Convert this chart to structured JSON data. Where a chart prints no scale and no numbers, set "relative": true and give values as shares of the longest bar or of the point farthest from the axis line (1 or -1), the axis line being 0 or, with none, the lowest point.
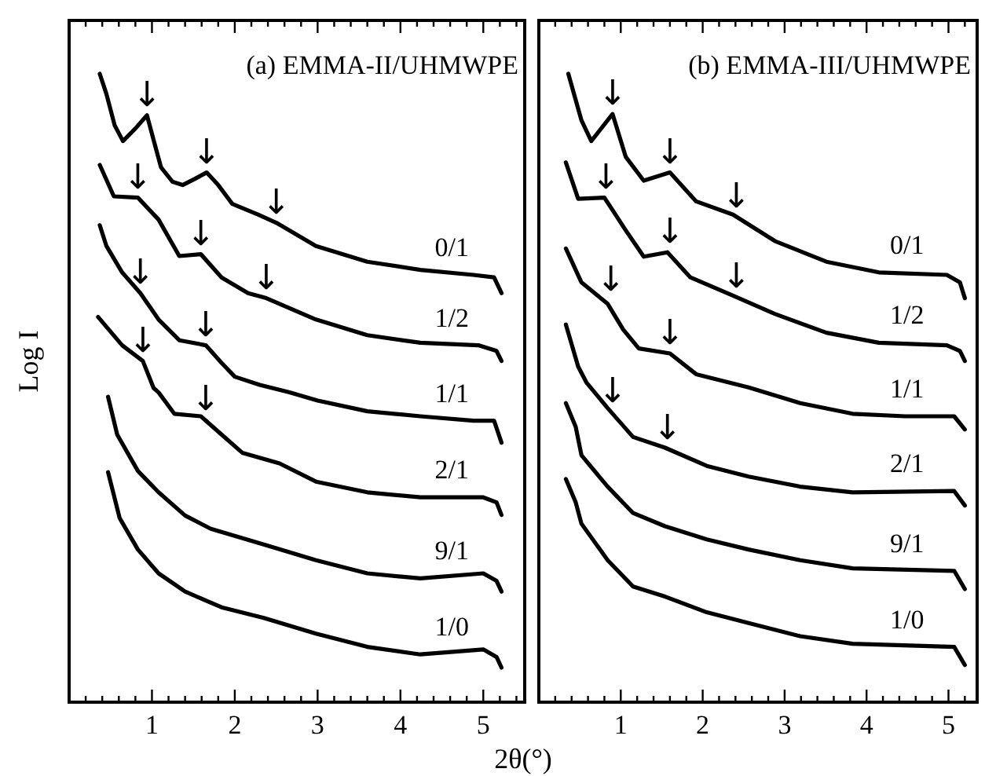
{
  "chart_data": [
    {
      "type": "line",
      "title": "(a) EMMA-II/UHMWPE",
      "ylabel": "Log I",
      "relative": true,
      "tick_labels": "x",
      "xlim": [
        0,
        5.5
      ],
      "xticks": [
        1,
        2,
        3,
        4,
        5
      ],
      "marker": "none",
      "line_style": "solid",
      "series": [
        {
          "name": "0/1",
          "color": "#000000",
          "x": [
            0.37,
            0.45,
            0.55,
            0.65,
            0.8,
            0.94,
            1.05,
            1.11,
            1.25,
            1.37,
            1.52,
            1.66,
            1.8,
            1.97,
            2.28,
            2.5,
            2.98,
            3.6,
            4.24,
            4.88,
            5.13,
            5.22
          ],
          "values": [
            1.0,
            0.968,
            0.918,
            0.893,
            0.913,
            0.934,
            0.88,
            0.851,
            0.828,
            0.823,
            0.833,
            0.843,
            0.823,
            0.793,
            0.776,
            0.763,
            0.726,
            0.701,
            0.688,
            0.68,
            0.676,
            0.651
          ]
        },
        {
          "name": "1/2",
          "color": "#000000",
          "x": [
            0.37,
            0.54,
            0.83,
            1.08,
            1.33,
            1.59,
            1.84,
            2.16,
            2.38,
            2.98,
            3.6,
            4.24,
            4.94,
            5.16,
            5.22
          ],
          "values": [
            0.855,
            0.805,
            0.803,
            0.768,
            0.71,
            0.713,
            0.676,
            0.651,
            0.643,
            0.609,
            0.584,
            0.572,
            0.568,
            0.559,
            0.543
          ]
        },
        {
          "name": "1/1",
          "color": "#000000",
          "x": [
            0.37,
            0.45,
            0.64,
            0.86,
            1.08,
            1.33,
            1.65,
            1.84,
            2.0,
            2.3,
            2.66,
            3.0,
            3.6,
            4.24,
            4.88,
            5.13,
            5.22
          ],
          "values": [
            0.759,
            0.726,
            0.684,
            0.651,
            0.609,
            0.576,
            0.568,
            0.54,
            0.518,
            0.505,
            0.493,
            0.48,
            0.463,
            0.455,
            0.448,
            0.448,
            0.413
          ]
        },
        {
          "name": "2/1",
          "color": "#000000",
          "x": [
            0.35,
            0.64,
            0.89,
            1.02,
            1.08,
            1.27,
            1.59,
            1.84,
            2.09,
            2.54,
            2.98,
            3.6,
            4.24,
            5.0,
            5.16,
            5.22
          ],
          "values": [
            0.613,
            0.568,
            0.543,
            0.5,
            0.493,
            0.459,
            0.455,
            0.426,
            0.397,
            0.38,
            0.351,
            0.334,
            0.326,
            0.326,
            0.318,
            0.298
          ]
        },
        {
          "name": "9/1",
          "color": "#000000",
          "x": [
            0.47,
            0.58,
            0.83,
            1.08,
            1.4,
            1.71,
            2.35,
            2.98,
            3.6,
            4.24,
            5.0,
            5.16,
            5.22
          ],
          "values": [
            0.486,
            0.426,
            0.368,
            0.334,
            0.297,
            0.276,
            0.251,
            0.226,
            0.205,
            0.197,
            0.205,
            0.193,
            0.176
          ]
        },
        {
          "name": "1/0",
          "color": "#000000",
          "x": [
            0.47,
            0.61,
            0.83,
            1.08,
            1.4,
            1.84,
            2.35,
            2.98,
            3.6,
            4.24,
            5.0,
            5.16,
            5.22
          ],
          "values": [
            0.366,
            0.293,
            0.243,
            0.205,
            0.176,
            0.151,
            0.134,
            0.109,
            0.088,
            0.076,
            0.084,
            0.072,
            0.055
          ]
        }
      ],
      "annotations": [
        {
          "text": "↓",
          "x": 0.94,
          "y": 0.934
        },
        {
          "text": "↓",
          "x": 1.66,
          "y": 0.843
        },
        {
          "text": "↓",
          "x": 2.5,
          "y": 0.763
        },
        {
          "text": "↓",
          "x": 0.83,
          "y": 0.803
        },
        {
          "text": "↓",
          "x": 1.59,
          "y": 0.713
        },
        {
          "text": "↓",
          "x": 2.38,
          "y": 0.643
        },
        {
          "text": "↓",
          "x": 0.86,
          "y": 0.651
        },
        {
          "text": "↓",
          "x": 1.65,
          "y": 0.568
        },
        {
          "text": "↓",
          "x": 0.89,
          "y": 0.543
        },
        {
          "text": "↓",
          "x": 1.65,
          "y": 0.45
        }
      ]
    },
    {
      "type": "line",
      "title": "(b) EMMA-III/UHMWPE",
      "xlabel": "2θ(°)",
      "relative": true,
      "tick_labels": "x",
      "xlim": [
        0,
        5.35
      ],
      "xticks": [
        1,
        2,
        3,
        4,
        5
      ],
      "marker": "none",
      "line_style": "solid",
      "series": [
        {
          "name": "0/1",
          "color": "#000000",
          "x": [
            0.36,
            0.52,
            0.64,
            0.9,
            1.06,
            1.28,
            1.6,
            1.92,
            2.37,
            2.88,
            3.51,
            4.15,
            4.98,
            5.14,
            5.2
          ],
          "values": [
            1.0,
            0.926,
            0.893,
            0.936,
            0.868,
            0.83,
            0.843,
            0.797,
            0.776,
            0.734,
            0.701,
            0.684,
            0.68,
            0.668,
            0.643
          ]
        },
        {
          "name": "1/2",
          "color": "#000000",
          "x": [
            0.33,
            0.48,
            0.8,
            1.06,
            1.28,
            1.57,
            1.85,
            2.37,
            2.88,
            3.51,
            4.15,
            4.98,
            5.14,
            5.2
          ],
          "values": [
            0.859,
            0.801,
            0.803,
            0.751,
            0.709,
            0.716,
            0.676,
            0.647,
            0.618,
            0.588,
            0.572,
            0.568,
            0.559,
            0.543
          ]
        },
        {
          "name": "1/1",
          "color": "#000000",
          "x": [
            0.33,
            0.52,
            0.84,
            1.03,
            1.22,
            1.6,
            1.92,
            2.56,
            3.19,
            3.83,
            4.47,
            5.07,
            5.2
          ],
          "values": [
            0.722,
            0.668,
            0.634,
            0.593,
            0.563,
            0.555,
            0.522,
            0.501,
            0.476,
            0.459,
            0.455,
            0.455,
            0.434
          ]
        },
        {
          "name": "2/1",
          "color": "#000000",
          "x": [
            0.33,
            0.48,
            0.58,
            0.84,
            1.15,
            1.54,
            2.05,
            2.56,
            3.19,
            3.83,
            5.07,
            5.2
          ],
          "values": [
            0.601,
            0.534,
            0.509,
            0.468,
            0.422,
            0.405,
            0.376,
            0.359,
            0.343,
            0.334,
            0.336,
            0.313
          ]
        },
        {
          "name": "9/1",
          "color": "#000000",
          "x": [
            0.33,
            0.45,
            0.52,
            0.84,
            1.15,
            1.54,
            2.05,
            2.56,
            3.19,
            3.83,
            5.07,
            5.2
          ],
          "values": [
            0.476,
            0.438,
            0.393,
            0.343,
            0.301,
            0.28,
            0.259,
            0.243,
            0.226,
            0.213,
            0.209,
            0.18
          ]
        },
        {
          "name": "1/0",
          "color": "#000000",
          "x": [
            0.33,
            0.45,
            0.52,
            0.84,
            1.15,
            1.54,
            2.05,
            2.56,
            3.19,
            3.83,
            5.07,
            5.2
          ],
          "values": [
            0.355,
            0.318,
            0.284,
            0.226,
            0.184,
            0.168,
            0.143,
            0.126,
            0.105,
            0.093,
            0.088,
            0.059
          ]
        }
      ],
      "annotations": [
        {
          "text": "↓",
          "x": 0.9,
          "y": 0.936
        },
        {
          "text": "↓",
          "x": 1.6,
          "y": 0.843
        },
        {
          "text": "↓",
          "x": 2.41,
          "y": 0.772
        },
        {
          "text": "↓",
          "x": 0.82,
          "y": 0.803
        },
        {
          "text": "↓",
          "x": 1.6,
          "y": 0.716
        },
        {
          "text": "↓",
          "x": 2.41,
          "y": 0.645
        },
        {
          "text": "↓",
          "x": 0.88,
          "y": 0.64
        },
        {
          "text": "↓",
          "x": 1.6,
          "y": 0.555
        },
        {
          "text": "↓",
          "x": 0.9,
          "y": 0.462
        },
        {
          "text": "↓",
          "x": 1.57,
          "y": 0.404
        }
      ]
    }
  ]
}
